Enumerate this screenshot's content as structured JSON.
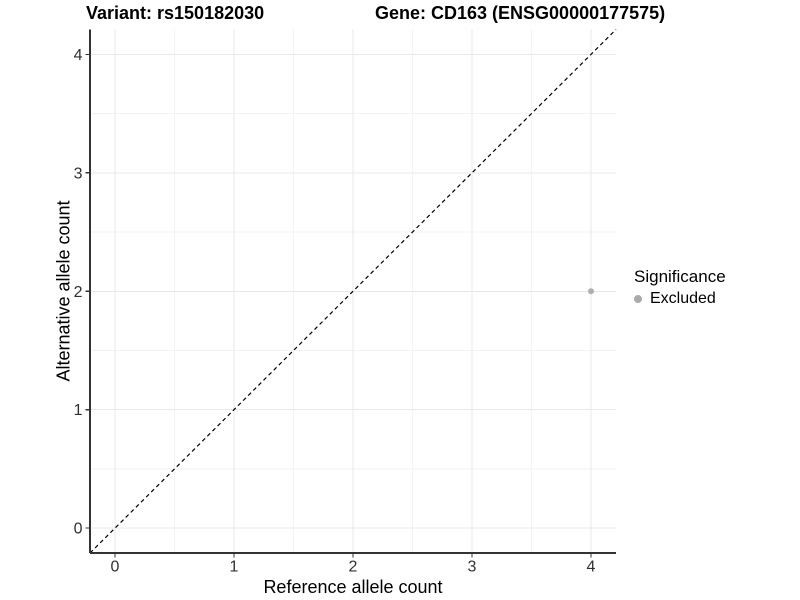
{
  "titles": {
    "variant": "Variant: rs150182030",
    "gene": "Gene: CD163 (ENSG00000177575)"
  },
  "legend": {
    "title": "Significance",
    "items": [
      {
        "label": "Excluded",
        "color": "#ababab",
        "marker": "circle"
      }
    ]
  },
  "chart_data": {
    "type": "scatter",
    "xlabel": "Reference allele count",
    "ylabel": "Alternative allele count",
    "xlim": [
      -0.21,
      4.21
    ],
    "ylim": [
      -0.21,
      4.21
    ],
    "xticks": [
      0,
      1,
      2,
      3,
      4
    ],
    "yticks": [
      0,
      1,
      2,
      3,
      4
    ],
    "x_minor_ticks": [
      0.5,
      1.5,
      2.5,
      3.5
    ],
    "y_minor_ticks": [
      0.5,
      1.5,
      2.5,
      3.5
    ],
    "grid": "major+minor",
    "legend_title": "Significance",
    "legend_position": "right",
    "series": [
      {
        "name": "Excluded",
        "color": "#b0b0b0",
        "points": [
          {
            "x": 4,
            "y": 2
          }
        ]
      }
    ],
    "reference_line": {
      "kind": "identity",
      "equation": "y = x",
      "style": "dashed",
      "color": "#000000"
    }
  },
  "colors": {
    "background": "#ffffff",
    "grid_major": "#e8e8e8",
    "grid_minor": "#f3f3f3",
    "axis": "#333333",
    "tick_label": "#303030",
    "title": "#000000",
    "point": "#b0b0b0"
  }
}
